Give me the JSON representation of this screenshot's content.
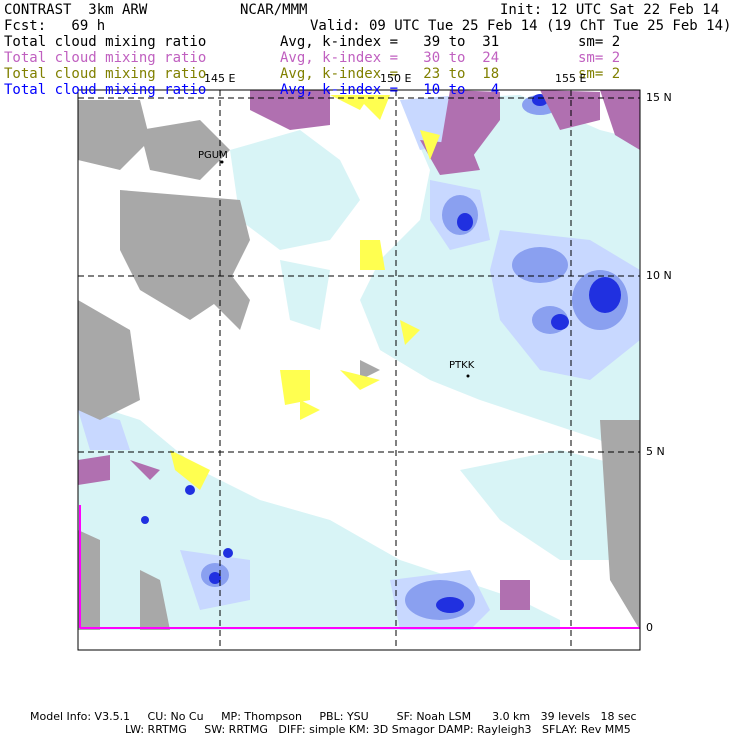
{
  "header": {
    "model": "CONTRAST  3km ARW",
    "org": "NCAR/MMM",
    "init": "Init: 12 UTC Sat 22 Feb 14",
    "fcst": "Fcst:   69 h",
    "valid": "Valid: 09 UTC Tue 25 Feb 14 (19 ChT Tue 25 Feb 14)"
  },
  "legend": [
    {
      "field": "Total cloud mixing ratio",
      "range": "Avg, k-index =   39 to  31",
      "sm": "sm= 2",
      "color": "#000000"
    },
    {
      "field": "Total cloud mixing ratio",
      "range": "Avg, k-index =   30 to  24",
      "sm": "sm= 2",
      "color": "#c060c0"
    },
    {
      "field": "Total cloud mixing ratio",
      "range": "Avg, k-index =   23 to  18",
      "sm": "sm= 2",
      "color": "#808000"
    },
    {
      "field": "Total cloud mixing ratio",
      "range": "Avg, k-index =   10 to   4",
      "sm": "",
      "color": "#0000ff"
    }
  ],
  "axes": {
    "lon_labels": [
      "145 E",
      "150 E",
      "155 E"
    ],
    "lat_labels": [
      "15 N",
      "10 N",
      "5 N",
      "0"
    ]
  },
  "stations": [
    "PGUM",
    "PTKK"
  ],
  "footer": {
    "line1": "Model Info: V3.5.1     CU: No Cu     MP: Thompson     PBL: YSU        SF: Noah LSM      3.0 km   39 levels   18 sec",
    "line2": "LW: RRTMG     SW: RRTMG   DIFF: simple KM: 3D Smagor DAMP: Rayleigh3   SFLAY: Rev MM5"
  },
  "colors": {
    "cloud_light": "#d8f4f6",
    "cloud_mid": "#c8d8ff",
    "cloud_blue": "#8aa0f0",
    "cloud_deep": "#2030e0",
    "gray": "#a8a8a8",
    "purple": "#b070b0",
    "yellow": "#ffff50",
    "boundary": "#ff00ff"
  }
}
